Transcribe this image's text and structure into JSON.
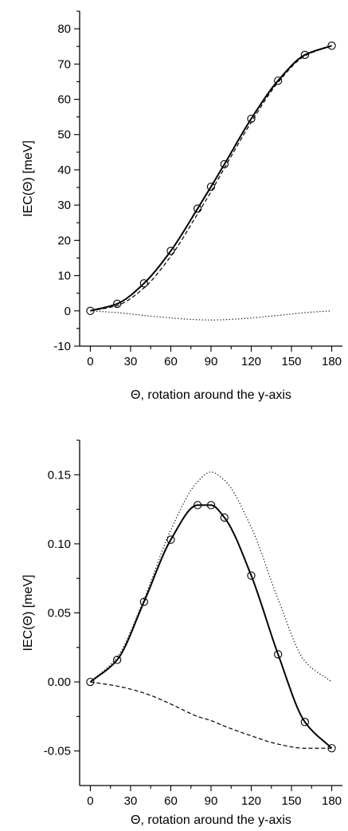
{
  "chart_data": [
    {
      "type": "line",
      "xlabel": "Θ, rotation around the y-axis",
      "ylabel": "IEC(Θ)  [meV]",
      "xlim": [
        -8,
        188
      ],
      "ylim": [
        -10,
        85
      ],
      "xticks": [
        0,
        30,
        60,
        90,
        120,
        150,
        180
      ],
      "yticks": [
        -10,
        0,
        10,
        20,
        30,
        40,
        50,
        60,
        70,
        80
      ],
      "yticklabels": [
        "-10",
        "0",
        "10",
        "20",
        "30",
        "40",
        "50",
        "60",
        "70",
        "80"
      ],
      "grid": false,
      "series": [
        {
          "style": "solid-with-circles",
          "x": [
            0,
            20,
            40,
            60,
            80,
            90,
            100,
            120,
            140,
            160,
            180
          ],
          "y": [
            0,
            2,
            7.8,
            17,
            29,
            35.2,
            41.6,
            54.5,
            65.3,
            72.6,
            75.2
          ]
        },
        {
          "style": "dashed",
          "x": [
            0,
            20,
            40,
            60,
            80,
            90,
            100,
            120,
            140,
            160,
            180
          ],
          "y": [
            0,
            1.5,
            6.5,
            15.5,
            27.5,
            33.8,
            40.5,
            53.5,
            64.8,
            72.3,
            75.2
          ]
        },
        {
          "style": "dotted",
          "x": [
            0,
            20,
            40,
            60,
            80,
            90,
            100,
            120,
            140,
            160,
            180
          ],
          "y": [
            0,
            -0.5,
            -1.3,
            -2.0,
            -2.5,
            -2.6,
            -2.5,
            -2.0,
            -1.3,
            -0.5,
            0
          ]
        }
      ]
    },
    {
      "type": "line",
      "xlabel": "Θ, rotation around the y-axis",
      "ylabel": "IEC(Θ)  [meV]",
      "xlim": [
        -8,
        188
      ],
      "ylim": [
        -0.075,
        0.175
      ],
      "xticks": [
        0,
        30,
        60,
        90,
        120,
        150,
        180
      ],
      "yticks": [
        -0.05,
        0,
        0.05,
        0.1,
        0.15
      ],
      "yticklabels": [
        "-0.05",
        "0.00",
        "0.05",
        "0.10",
        "0.15"
      ],
      "grid": false,
      "series": [
        {
          "style": "solid-with-circles",
          "x": [
            0,
            20,
            40,
            60,
            80,
            90,
            100,
            120,
            140,
            160,
            180
          ],
          "y": [
            0,
            0.016,
            0.058,
            0.103,
            0.128,
            0.128,
            0.119,
            0.077,
            0.02,
            -0.029,
            -0.048
          ]
        },
        {
          "style": "dotted",
          "x": [
            0,
            20,
            40,
            60,
            80,
            90,
            100,
            120,
            140,
            160,
            180
          ],
          "y": [
            0,
            0.018,
            0.06,
            0.11,
            0.145,
            0.152,
            0.146,
            0.112,
            0.06,
            0.015,
            0
          ]
        },
        {
          "style": "dashed",
          "x": [
            0,
            20,
            40,
            60,
            80,
            90,
            100,
            120,
            140,
            160,
            180
          ],
          "y": [
            0,
            -0.003,
            -0.008,
            -0.016,
            -0.025,
            -0.028,
            -0.032,
            -0.039,
            -0.045,
            -0.048,
            -0.048
          ]
        }
      ]
    }
  ]
}
